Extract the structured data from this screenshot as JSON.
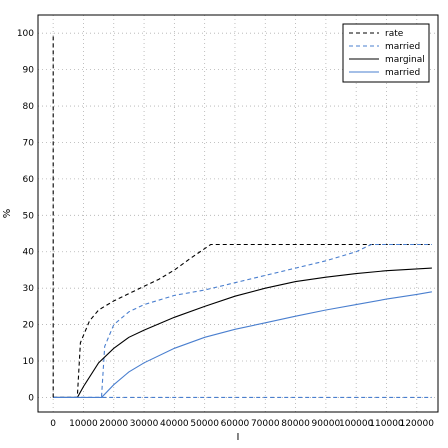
{
  "chart_data": {
    "type": "line",
    "title": "",
    "xlabel": "I",
    "ylabel": "%",
    "xlim": [
      -5000,
      127000
    ],
    "ylim": [
      -4,
      105
    ],
    "xticks": [
      0,
      10000,
      20000,
      30000,
      40000,
      50000,
      60000,
      70000,
      80000,
      90000,
      100000,
      110000,
      120000
    ],
    "xtick_labels": [
      "0",
      "10000",
      "20000",
      "30000",
      "40000",
      "50000",
      "60000",
      "70000",
      "80000",
      "90000",
      "100000",
      "110000",
      "120000"
    ],
    "yticks": [
      0,
      10,
      20,
      30,
      40,
      50,
      60,
      70,
      80,
      90,
      100
    ],
    "ytick_labels": [
      "0",
      "10",
      "20",
      "30",
      "40",
      "50",
      "60",
      "70",
      "80",
      "90",
      "100"
    ],
    "grid": true,
    "legend_position": "top-right",
    "series": [
      {
        "name": "rate",
        "color": "#000000",
        "dash": "dashed",
        "x": [
          0,
          8000,
          8000,
          9000,
          12000,
          15000,
          20000,
          25000,
          30000,
          35000,
          40000,
          45000,
          52000,
          60000,
          80000,
          100000,
          125000
        ],
        "y": [
          0,
          0,
          0.5,
          15,
          21,
          24,
          26.5,
          28.5,
          30.5,
          32.5,
          35,
          38,
          42,
          42,
          42,
          42,
          42
        ]
      },
      {
        "name": "married",
        "color": "#4a7fcf",
        "dash": "dashed",
        "x": [
          0,
          16000,
          16000,
          17000,
          20000,
          25000,
          30000,
          40000,
          50000,
          60000,
          70000,
          80000,
          90000,
          100000,
          105000,
          125000
        ],
        "y": [
          0,
          0,
          0.5,
          14,
          20,
          23.5,
          25.5,
          28,
          29.5,
          31.5,
          33.5,
          35.5,
          37.5,
          40,
          42,
          42
        ]
      },
      {
        "name": "marginal",
        "color": "#000000",
        "dash": "solid",
        "x": [
          0,
          8000,
          10000,
          15000,
          20000,
          25000,
          30000,
          40000,
          50000,
          60000,
          70000,
          80000,
          90000,
          100000,
          110000,
          125000
        ],
        "y": [
          0,
          0,
          3,
          9.5,
          13.5,
          16.5,
          18.5,
          22,
          25,
          27.8,
          30,
          31.8,
          33,
          34,
          34.8,
          35.5
        ]
      },
      {
        "name": "married",
        "color": "#4a7fcf",
        "dash": "solid",
        "x": [
          0,
          16000,
          20000,
          25000,
          30000,
          40000,
          50000,
          60000,
          70000,
          80000,
          90000,
          100000,
          110000,
          120000,
          125000
        ],
        "y": [
          0,
          0,
          3.5,
          7,
          9.5,
          13.5,
          16.5,
          18.7,
          20.5,
          22.3,
          24,
          25.5,
          27,
          28.3,
          29
        ]
      },
      {
        "name": "",
        "color": "#4a7fcf",
        "dash": "dashed",
        "x": [
          0,
          125000
        ],
        "y": [
          0,
          0
        ]
      },
      {
        "name": "",
        "color": "#000000",
        "dash": "dashed",
        "x": [
          0,
          0
        ],
        "y": [
          0,
          100
        ]
      }
    ]
  }
}
